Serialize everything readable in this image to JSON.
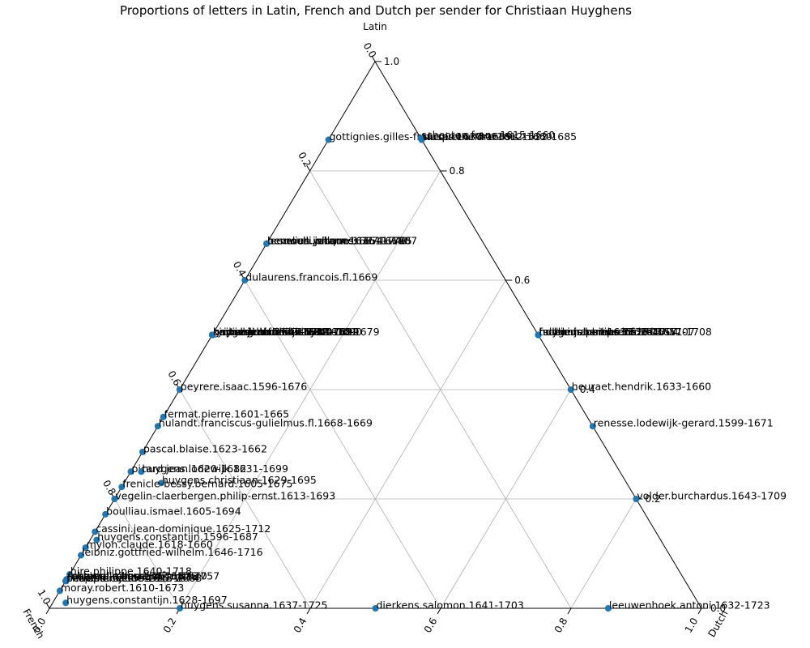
{
  "chart_data": {
    "type": "scatter",
    "subtype": "ternary",
    "title": "Proportions of letters in Latin, French and Dutch per sender for Christiaan Huyghens",
    "axes": {
      "top": "Latin",
      "left": "French",
      "right": "Dutch"
    },
    "ticks": [
      "0.0",
      "0.2",
      "0.4",
      "0.6",
      "0.8",
      "1.0"
    ],
    "grid": true,
    "marker_color": "#1f77b4",
    "points": [
      {
        "label": "gottignies.gilles-francois.1630-1689",
        "latin": 0.857,
        "french": 0.143,
        "dutch": 0.0
      },
      {
        "label": "schooten.frans.1615-1660",
        "latin": 0.86,
        "french": 0.0,
        "dutch": 0.14
      },
      {
        "label": "sluse.rene-francois.1622-1685",
        "latin": 0.857,
        "french": 0.0,
        "dutch": 0.143
      },
      {
        "label": "tacquet.andre.1612-1660",
        "latin": 0.857,
        "french": 0.0,
        "dutch": 0.143
      },
      {
        "label": "bernoulli.jacques.1654-1705",
        "latin": 0.667,
        "french": 0.333,
        "dutch": 0.0
      },
      {
        "label": "leeuwen.willem.1635-1667",
        "latin": 0.667,
        "french": 0.333,
        "dutch": 0.0
      },
      {
        "label": "hevelius.johannes.1611-1687",
        "latin": 0.667,
        "french": 0.333,
        "dutch": 0.0
      },
      {
        "label": "bernoulli.johann.1667-1748",
        "latin": 0.667,
        "french": 0.333,
        "dutch": 0.0
      },
      {
        "label": "dulaurens.francois.fl.1669",
        "latin": 0.6,
        "french": 0.4,
        "dutch": 0.0
      },
      {
        "label": "kinner.gottfried-aloys.1610-1679",
        "latin": 0.5,
        "french": 0.5,
        "dutch": 0.0
      },
      {
        "label": "bertet.jean.1622-1692",
        "latin": 0.5,
        "french": 0.5,
        "dutch": 0.0
      },
      {
        "label": "papin.denis.1647-1713",
        "latin": 0.5,
        "french": 0.5,
        "dutch": 0.0
      },
      {
        "label": "grimaldi.claudio.1638-1712",
        "latin": 0.5,
        "french": 0.5,
        "dutch": 0.0
      },
      {
        "label": "heinsius.nicolaas.1620-1681",
        "latin": 0.5,
        "french": 0.5,
        "dutch": 0.0
      },
      {
        "label": "huygens.lodewijk.1631-1699",
        "latin": 0.5,
        "french": 0.5,
        "dutch": 0.0
      },
      {
        "label": "ryckius.theodorus.1640-1690",
        "latin": 0.5,
        "french": 0.5,
        "dutch": 0.0
      },
      {
        "label": "huygens.philips.1633-1657",
        "latin": 0.5,
        "french": 0.0,
        "dutch": 0.5
      },
      {
        "label": "hudde.johannes.1628-1704",
        "latin": 0.5,
        "french": 0.0,
        "dutch": 0.5
      },
      {
        "label": "tschirnhaus.ehrenfried.1651-1708",
        "latin": 0.5,
        "french": 0.0,
        "dutch": 0.5
      },
      {
        "label": "fullenius.bernardus.1640-1707",
        "latin": 0.5,
        "french": 0.0,
        "dutch": 0.5
      },
      {
        "label": "hooke.robert.1635-1703",
        "latin": 0.5,
        "french": 0.0,
        "dutch": 0.5
      },
      {
        "label": "peyrere.isaac.1596-1676",
        "latin": 0.4,
        "french": 0.6,
        "dutch": 0.0
      },
      {
        "label": "heuraet.hendrik.1633-1660",
        "latin": 0.4,
        "french": 0.0,
        "dutch": 0.6
      },
      {
        "label": "fermat.pierre.1601-1665",
        "latin": 0.35,
        "french": 0.65,
        "dutch": 0.0
      },
      {
        "label": "hulandt.franciscus-gulielmus.fl.1668-1669",
        "latin": 0.333,
        "french": 0.667,
        "dutch": 0.0
      },
      {
        "label": "renesse.lodewijk-gerard.1599-1671",
        "latin": 0.333,
        "french": 0.0,
        "dutch": 0.667
      },
      {
        "label": "pascal.blaise.1623-1662",
        "latin": 0.286,
        "french": 0.714,
        "dutch": 0.0
      },
      {
        "label": "picard.jean.1620-1682",
        "latin": 0.25,
        "french": 0.75,
        "dutch": 0.0
      },
      {
        "label": "huygens.lodewijk.1631-1699",
        "latin": 0.25,
        "french": 0.734,
        "dutch": 0.016
      },
      {
        "label": "huygens.christiaan.1629-1695",
        "latin": 0.229,
        "french": 0.714,
        "dutch": 0.057
      },
      {
        "label": "frenicle-bessy.bernard.1605-1675",
        "latin": 0.222,
        "french": 0.778,
        "dutch": 0.0
      },
      {
        "label": "vegelin-claerbergen.philip-ernst.1613-1693",
        "latin": 0.2,
        "french": 0.8,
        "dutch": 0.0
      },
      {
        "label": "volder.burchardus.1643-1709",
        "latin": 0.2,
        "french": 0.0,
        "dutch": 0.8
      },
      {
        "label": "boulliau.ismael.1605-1694",
        "latin": 0.172,
        "french": 0.828,
        "dutch": 0.0
      },
      {
        "label": "cassini.jean-dominique.1625-1712",
        "latin": 0.14,
        "french": 0.86,
        "dutch": 0.0
      },
      {
        "label": "huygens.constantijn.1596-1687",
        "latin": 0.125,
        "french": 0.865,
        "dutch": 0.01
      },
      {
        "label": "mylon.claude.1618-1660",
        "latin": 0.111,
        "french": 0.889,
        "dutch": 0.0
      },
      {
        "label": "leibniz.gottfried-wilhelm.1646-1716",
        "latin": 0.097,
        "french": 0.903,
        "dutch": 0.0
      },
      {
        "label": "hire.philippe.1640-1718",
        "latin": 0.062,
        "french": 0.938,
        "dutch": 0.0
      },
      {
        "label": "roberval.gilles.1602-1675",
        "latin": 0.053,
        "french": 0.947,
        "dutch": 0.0
      },
      {
        "label": "fontenelle.bernard.1657-1757",
        "latin": 0.053,
        "french": 0.947,
        "dutch": 0.0
      },
      {
        "label": "sorbiere.samuel.1615-1670",
        "latin": 0.053,
        "french": 0.947,
        "dutch": 0.0
      },
      {
        "label": "perrault.claude.1613-1688",
        "latin": 0.05,
        "french": 0.95,
        "dutch": 0.0
      },
      {
        "label": "chapelain.jean.1595-1674",
        "latin": 0.05,
        "french": 0.95,
        "dutch": 0.0
      },
      {
        "label": "petit.pierre.1594-1677",
        "latin": 0.05,
        "french": 0.95,
        "dutch": 0.0
      },
      {
        "label": "moray.robert.1610-1673",
        "latin": 0.032,
        "french": 0.968,
        "dutch": 0.0
      },
      {
        "label": "huygens.constantijn.1628-1697",
        "latin": 0.01,
        "french": 0.97,
        "dutch": 0.02
      },
      {
        "label": "huygens.susanna.1637-1725",
        "latin": 0.0,
        "french": 0.8,
        "dutch": 0.2
      },
      {
        "label": "dierkens.salomon.1641-1703",
        "latin": 0.0,
        "french": 0.5,
        "dutch": 0.5
      },
      {
        "label": "leeuwenhoek.antoni.1632-1723",
        "latin": 0.0,
        "french": 0.143,
        "dutch": 0.857
      }
    ]
  }
}
